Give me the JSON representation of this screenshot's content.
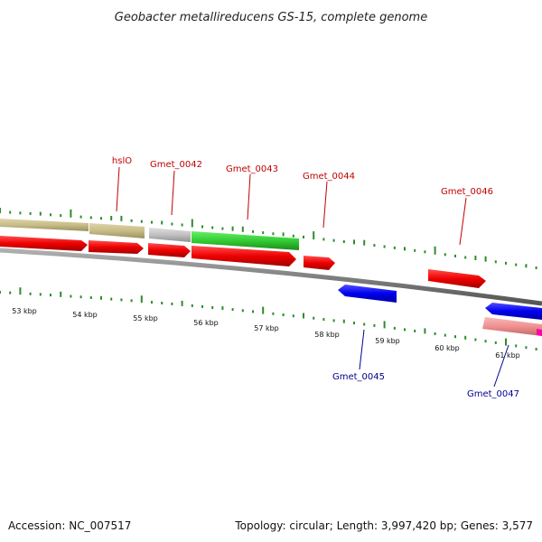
{
  "title": "Geobacter metallireducens GS-15, complete genome",
  "footer": {
    "accession": "Accession: NC_007517",
    "summary": "Topology: circular; Length: 3,997,420 bp; Genes: 3,577"
  },
  "colors": {
    "backbone": "#808080",
    "forward_cds": "#ee0000",
    "reverse_cds": "#0000ee",
    "gc_tick": "#2e8b2e",
    "label_forward": "#c00000",
    "label_reverse": "#00008b",
    "khaki": "#c8bd88",
    "grey": "#c0c0c0",
    "green": "#33cc33",
    "pink": "#f09090",
    "magenta": "#ff00aa"
  },
  "gene_labels": [
    {
      "name": "hslO",
      "strand": "forward"
    },
    {
      "name": "Gmet_0042",
      "strand": "forward"
    },
    {
      "name": "Gmet_0043",
      "strand": "forward"
    },
    {
      "name": "Gmet_0044",
      "strand": "forward"
    },
    {
      "name": "Gmet_0046",
      "strand": "forward"
    },
    {
      "name": "Gmet_0045",
      "strand": "reverse"
    },
    {
      "name": "Gmet_0047",
      "strand": "reverse"
    }
  ],
  "scale_labels": [
    "53 kbp",
    "54 kbp",
    "55 kbp",
    "56 kbp",
    "57 kbp",
    "58 kbp",
    "59 kbp",
    "60 kbp",
    "61 kbp"
  ]
}
